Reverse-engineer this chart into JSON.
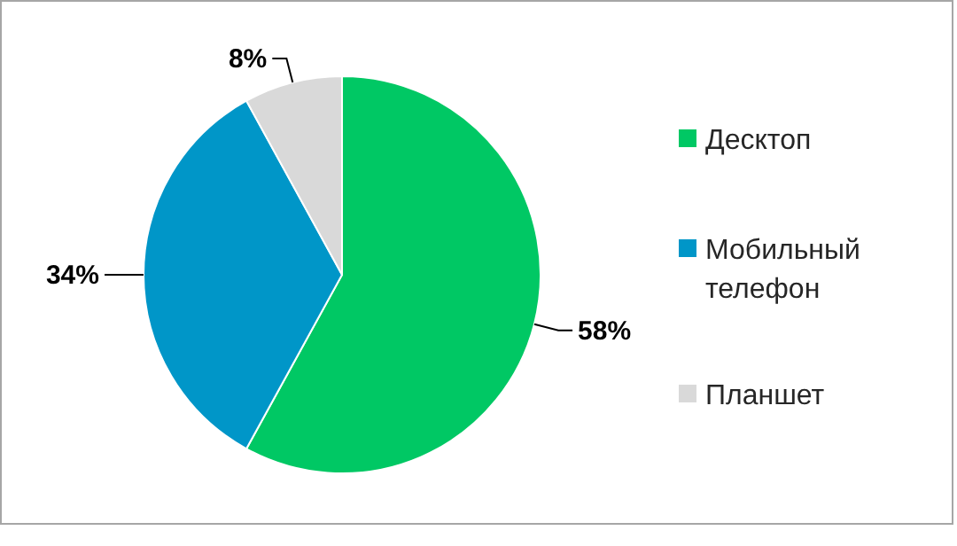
{
  "chart_data": {
    "type": "pie",
    "categories": [
      "Десктоп",
      "Мобильный телефон",
      "Планшет"
    ],
    "values": [
      58,
      34,
      8
    ],
    "colors": [
      "#00c864",
      "#0096c8",
      "#d9d9d9"
    ],
    "value_labels": [
      "58%",
      "34%",
      "8%"
    ],
    "legend": "right"
  }
}
